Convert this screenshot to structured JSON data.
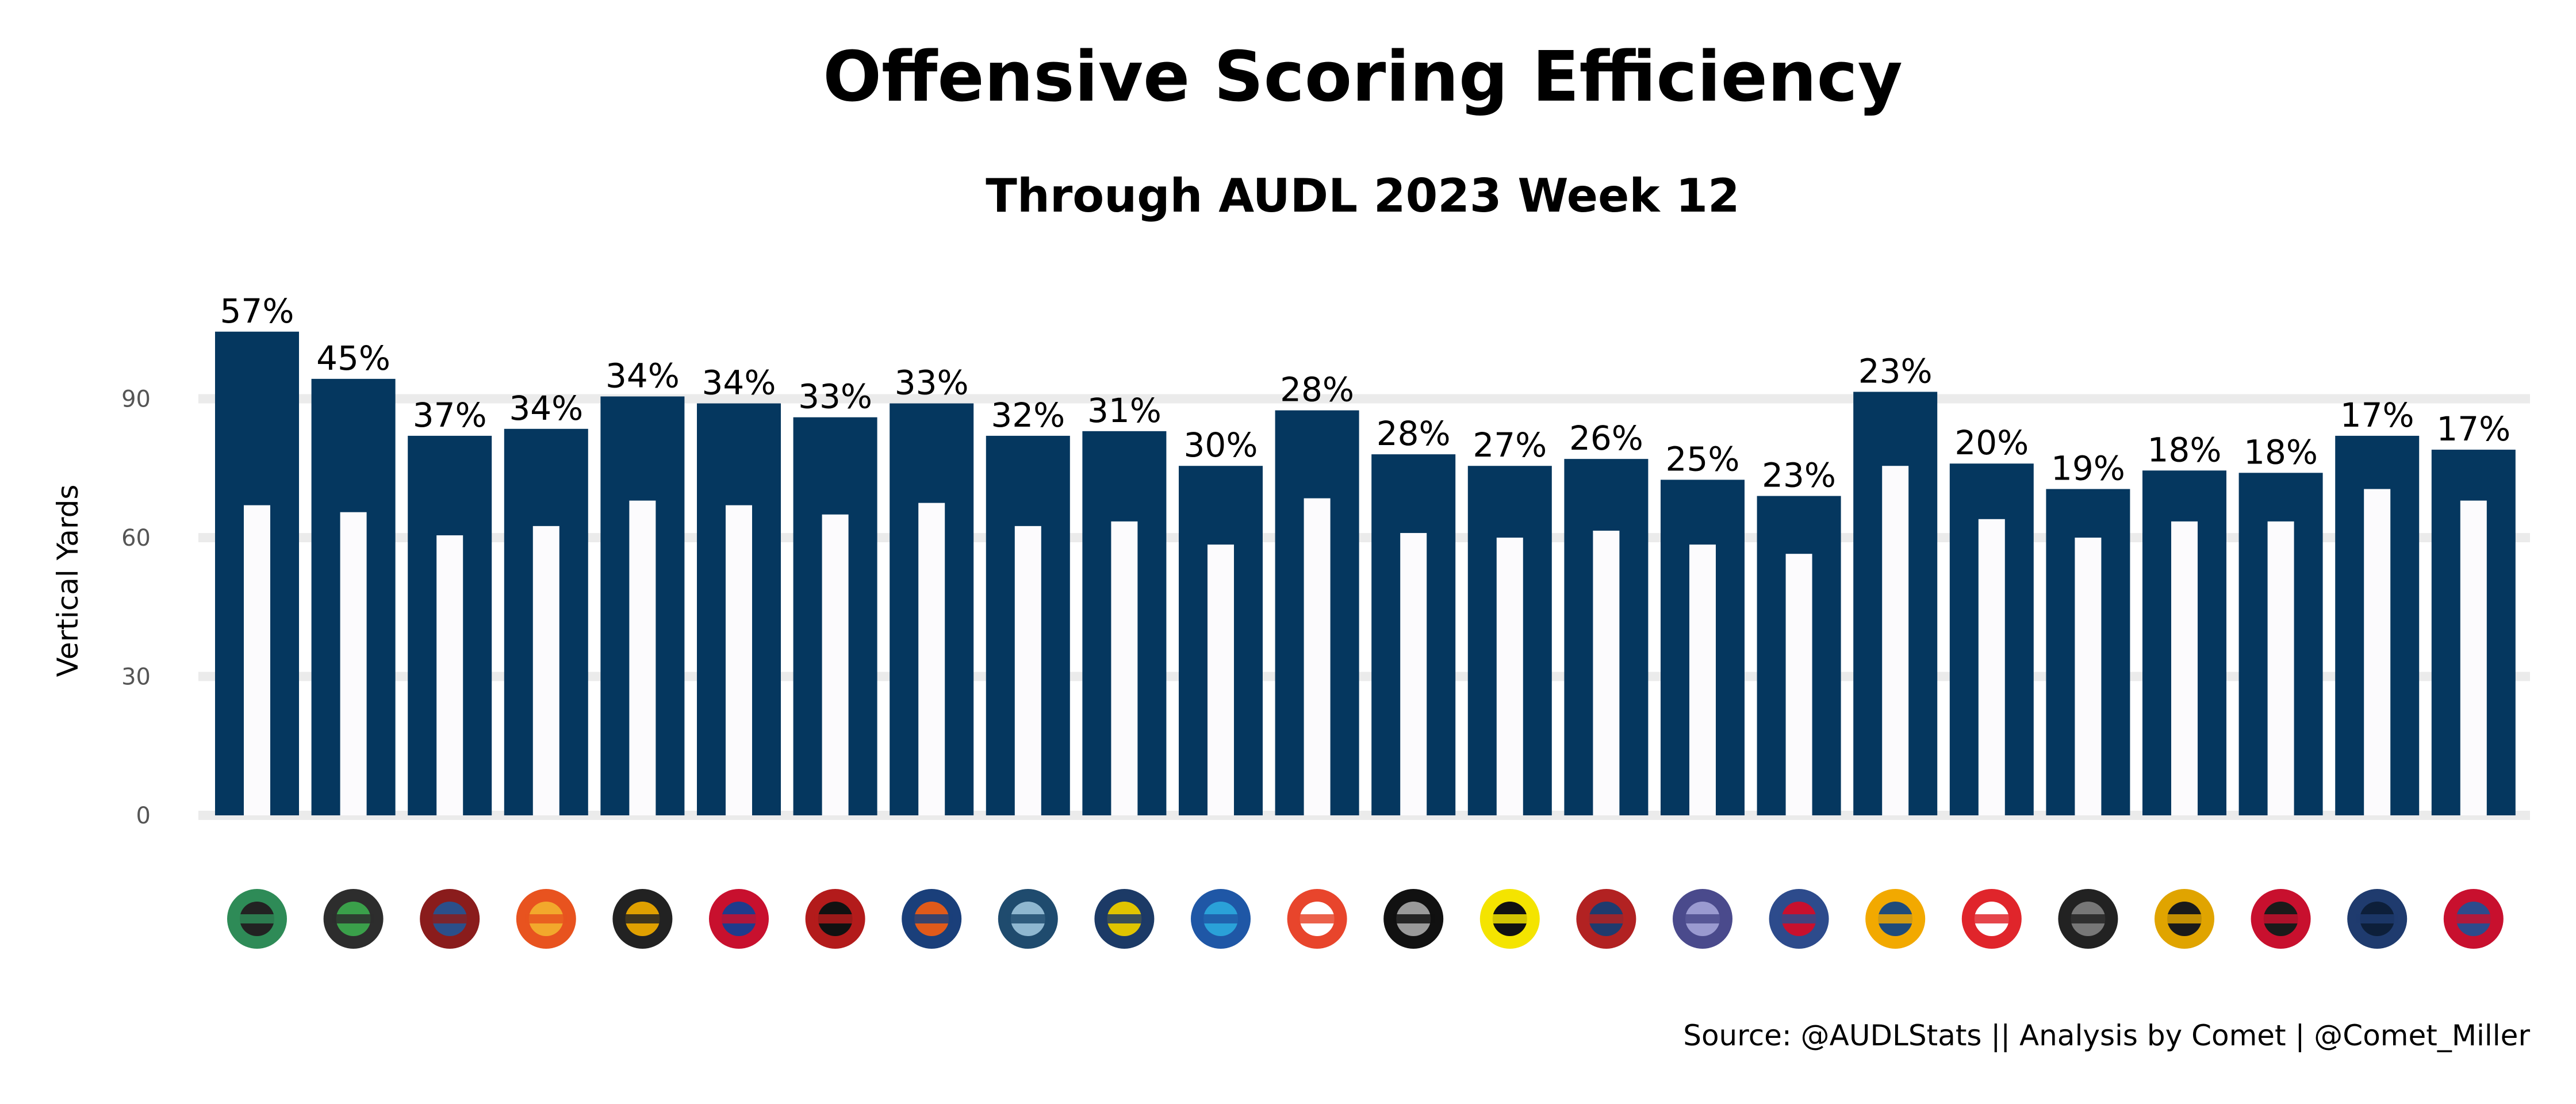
{
  "colors": {
    "outer_bar": "#05375f",
    "inner_bar": "#fcfbfd",
    "grid": "#ebebeb",
    "text": "#000000",
    "tick_text": "#555555"
  },
  "chart_data": {
    "type": "bar",
    "title": "Offensive Scoring Efficiency",
    "subtitle": "Through AUDL 2023 Week 12",
    "ylabel": "Vertical Yards",
    "caption": "Source: @AUDLStats || Analysis by Comet | @Comet_Miller",
    "ylim": [
      0,
      110
    ],
    "yticks": [
      0,
      30,
      60,
      90
    ],
    "grid": true,
    "legend": "none",
    "x_axis_labels": "team logos",
    "teams": [
      {
        "logo": "alleycats-logo",
        "pct_label": "57%",
        "outer": 104.5,
        "inner": 67
      },
      {
        "logo": "empire-logo",
        "pct_label": "45%",
        "outer": 94.3,
        "inner": 65.5
      },
      {
        "logo": "flyers-logo",
        "pct_label": "37%",
        "outer": 82,
        "inner": 60.5
      },
      {
        "logo": "phoenix-logo",
        "pct_label": "34%",
        "outer": 83.5,
        "inner": 62.5
      },
      {
        "logo": "hustle-logo",
        "pct_label": "34%",
        "outer": 90.5,
        "inner": 68
      },
      {
        "logo": "breeze-logo",
        "pct_label": "34%",
        "outer": 89,
        "inner": 67
      },
      {
        "logo": "mechanix-logo",
        "pct_label": "33%",
        "outer": 86,
        "inner": 65
      },
      {
        "logo": "royal-logo",
        "pct_label": "33%",
        "outer": 89,
        "inner": 67.5
      },
      {
        "logo": "summit-logo",
        "pct_label": "32%",
        "outer": 82,
        "inner": 62.5
      },
      {
        "logo": "radicals-logo",
        "pct_label": "31%",
        "outer": 83,
        "inner": 63.5
      },
      {
        "logo": "union-logo",
        "pct_label": "30%",
        "outer": 75.5,
        "inner": 58.5
      },
      {
        "logo": "nitro-logo",
        "pct_label": "28%",
        "outer": 87.5,
        "inner": 68.5
      },
      {
        "logo": "mechanix-m-logo",
        "pct_label": "28%",
        "outer": 78,
        "inner": 61
      },
      {
        "logo": "growlers-logo",
        "pct_label": "27%",
        "outer": 75.5,
        "inner": 60
      },
      {
        "logo": "cannons-logo",
        "pct_label": "26%",
        "outer": 77,
        "inner": 61.5
      },
      {
        "logo": "havoc-logo",
        "pct_label": "25%",
        "outer": 72.5,
        "inner": 58.5
      },
      {
        "logo": "sol-logo",
        "pct_label": "23%",
        "outer": 69,
        "inner": 56.5
      },
      {
        "logo": "spiders-sunrise-logo",
        "pct_label": "23%",
        "outer": 91.5,
        "inner": 75.5
      },
      {
        "logo": "wolf-logo",
        "pct_label": "20%",
        "outer": 76,
        "inner": 64
      },
      {
        "logo": "spiders-logo",
        "pct_label": "19%",
        "outer": 70.5,
        "inner": 60
      },
      {
        "logo": "legion-logo",
        "pct_label": "18%",
        "outer": 74.5,
        "inner": 63.5
      },
      {
        "logo": "rush-logo",
        "pct_label": "18%",
        "outer": 74,
        "inner": 63.5
      },
      {
        "logo": "windchill-logo",
        "pct_label": "17%",
        "outer": 82,
        "inner": 70.5
      },
      {
        "logo": "glory-logo",
        "pct_label": "17%",
        "outer": 79,
        "inner": 68
      }
    ]
  }
}
